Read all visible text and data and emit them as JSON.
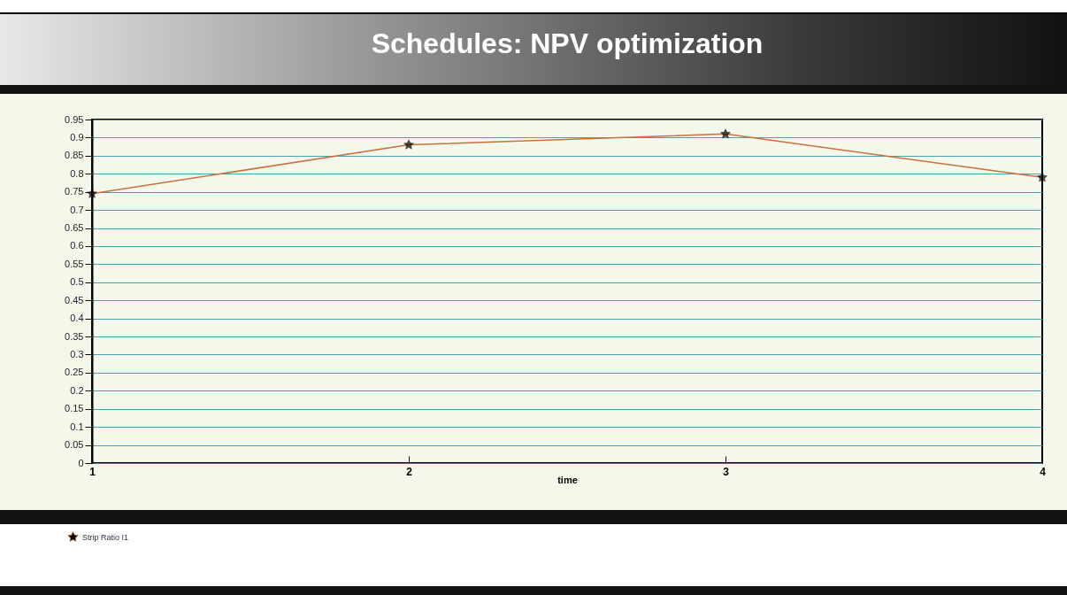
{
  "chart_data": {
    "type": "line",
    "title": "Schedules: NPV optimization",
    "xlabel": "time",
    "x": [
      1,
      2,
      3,
      4
    ],
    "series": [
      {
        "name": "Strip Ratio I1",
        "color": "#c8703e",
        "values": [
          0.745,
          0.88,
          0.91,
          0.79
        ]
      }
    ],
    "xlim": [
      1,
      4
    ],
    "xticks": [
      1,
      2,
      3,
      4
    ],
    "ylim": [
      0,
      0.95
    ],
    "yticks": [
      0,
      0.05,
      0.1,
      0.15,
      0.2,
      0.25,
      0.3,
      0.35,
      0.4,
      0.45,
      0.5,
      0.55,
      0.6,
      0.65,
      0.7,
      0.75,
      0.8,
      0.85,
      0.9,
      0.95
    ],
    "grid": "y",
    "legend": "bottom left",
    "marker": "star",
    "line_style": "solid"
  }
}
